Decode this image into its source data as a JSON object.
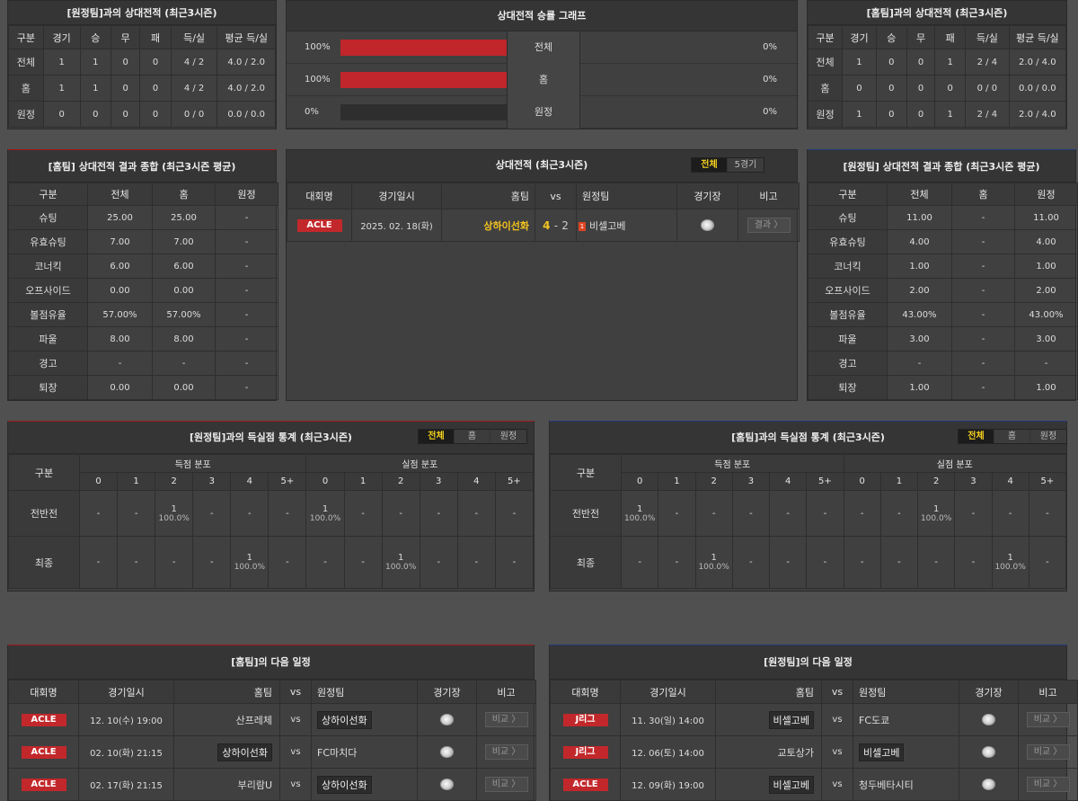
{
  "h2h_away": {
    "title": "[원정팀]과의 상대전적 (최근3시즌)",
    "headers": [
      "구분",
      "경기",
      "승",
      "무",
      "패",
      "득/실",
      "평균 득/실"
    ],
    "rows": [
      [
        "전체",
        "1",
        "1",
        "0",
        "0",
        "4 / 2",
        "4.0 / 2.0"
      ],
      [
        "홈",
        "1",
        "1",
        "0",
        "0",
        "4 / 2",
        "4.0 / 2.0"
      ],
      [
        "원정",
        "0",
        "0",
        "0",
        "0",
        "0 / 0",
        "0.0 / 0.0"
      ]
    ]
  },
  "graph": {
    "title": "상대전적 승률 그래프",
    "rows": [
      {
        "label": "전체",
        "left": "100%",
        "right": "0%",
        "left_frac": 1.0
      },
      {
        "label": "홈",
        "left": "100%",
        "right": "0%",
        "left_frac": 1.0
      },
      {
        "label": "원정",
        "left": "0%",
        "right": "0%",
        "left_frac": 0.0
      }
    ]
  },
  "h2h_home": {
    "title": "[홈팀]과의 상대전적 (최근3시즌)",
    "headers": [
      "구분",
      "경기",
      "승",
      "무",
      "패",
      "득/실",
      "평균 득/실"
    ],
    "rows": [
      [
        "전체",
        "1",
        "0",
        "0",
        "1",
        "2 / 4",
        "2.0 / 4.0"
      ],
      [
        "홈",
        "0",
        "0",
        "0",
        "0",
        "0 / 0",
        "0.0 / 0.0"
      ],
      [
        "원정",
        "1",
        "0",
        "0",
        "1",
        "2 / 4",
        "2.0 / 4.0"
      ]
    ]
  },
  "home_summary": {
    "title": "[홈팀] 상대전적 결과 종합 (최근3시즌 평균)",
    "headers": [
      "구분",
      "전체",
      "홈",
      "원정"
    ],
    "rows": [
      [
        "슈팅",
        "25.00",
        "25.00",
        "-"
      ],
      [
        "유효슈팅",
        "7.00",
        "7.00",
        "-"
      ],
      [
        "코너킥",
        "6.00",
        "6.00",
        "-"
      ],
      [
        "오프사이드",
        "0.00",
        "0.00",
        "-"
      ],
      [
        "볼점유율",
        "57.00%",
        "57.00%",
        "-"
      ],
      [
        "파울",
        "8.00",
        "8.00",
        "-"
      ],
      [
        "경고",
        "-",
        "-",
        "-"
      ],
      [
        "퇴장",
        "0.00",
        "0.00",
        "-"
      ]
    ]
  },
  "h2h_list": {
    "title": "상대전적 (최근3시즌)",
    "tabs": [
      "전체",
      "5경기"
    ],
    "headers": {
      "league": "대회명",
      "date": "경기일시",
      "home": "홈팀",
      "vs": "vs",
      "away": "원정팀",
      "venue": "경기장",
      "note": "비고"
    },
    "matches": [
      {
        "league": "ACLE",
        "date": "2025. 02. 18(화)",
        "home": "상하이선화",
        "score_home": "4",
        "dash": "-",
        "score_away": "2",
        "card": "1",
        "away": "비셀고베",
        "button": "결과 〉"
      }
    ]
  },
  "away_summary": {
    "title": "[원정팀] 상대전적 결과 종합 (최근3시즌 평균)",
    "headers": [
      "구분",
      "전체",
      "홈",
      "원정"
    ],
    "rows": [
      [
        "슈팅",
        "11.00",
        "-",
        "11.00"
      ],
      [
        "유효슈팅",
        "4.00",
        "-",
        "4.00"
      ],
      [
        "코너킥",
        "1.00",
        "-",
        "1.00"
      ],
      [
        "오프사이드",
        "2.00",
        "-",
        "2.00"
      ],
      [
        "볼점유율",
        "43.00%",
        "-",
        "43.00%"
      ],
      [
        "파울",
        "3.00",
        "-",
        "3.00"
      ],
      [
        "경고",
        "-",
        "-",
        "-"
      ],
      [
        "퇴장",
        "1.00",
        "-",
        "1.00"
      ]
    ]
  },
  "goals_left": {
    "title": "[원정팀]과의 득실점 통계 (최근3시즌)",
    "tabs": [
      "전체",
      "홈",
      "원정"
    ],
    "group_header": "구분",
    "scored_label": "득점 분포",
    "conceded_label": "실점 분포",
    "cols": [
      "0",
      "1",
      "2",
      "3",
      "4",
      "5+"
    ],
    "rows": [
      {
        "label": "전반전",
        "scored": [
          "-",
          "-",
          "1|100.0%",
          "-",
          "-",
          "-"
        ],
        "conceded": [
          "1|100.0%",
          "-",
          "-",
          "-",
          "-",
          "-"
        ]
      },
      {
        "label": "최종",
        "scored": [
          "-",
          "-",
          "-",
          "-",
          "1|100.0%",
          "-"
        ],
        "conceded": [
          "-",
          "-",
          "1|100.0%",
          "-",
          "-",
          "-"
        ]
      }
    ]
  },
  "goals_right": {
    "title": "[홈팀]과의 득실점 통계 (최근3시즌)",
    "tabs": [
      "전체",
      "홈",
      "원정"
    ],
    "group_header": "구분",
    "scored_label": "득점 분포",
    "conceded_label": "실점 분포",
    "cols": [
      "0",
      "1",
      "2",
      "3",
      "4",
      "5+"
    ],
    "rows": [
      {
        "label": "전반전",
        "scored": [
          "1|100.0%",
          "-",
          "-",
          "-",
          "-",
          "-"
        ],
        "conceded": [
          "-",
          "-",
          "1|100.0%",
          "-",
          "-",
          "-"
        ]
      },
      {
        "label": "최종",
        "scored": [
          "-",
          "-",
          "1|100.0%",
          "-",
          "-",
          "-"
        ],
        "conceded": [
          "-",
          "-",
          "-",
          "-",
          "1|100.0%",
          "-"
        ]
      }
    ]
  },
  "next_home": {
    "title": "[홈팀]의 다음 일정",
    "headers": {
      "league": "대회명",
      "date": "경기일시",
      "home": "홈팀",
      "vs": "vs",
      "away": "원정팀",
      "venue": "경기장",
      "note": "비고"
    },
    "matches": [
      {
        "league": "ACLE",
        "date": "12. 10(수) 19:00",
        "home": "산프레체",
        "away": "상하이선화",
        "hl": "away",
        "button": "비교 〉"
      },
      {
        "league": "ACLE",
        "date": "02. 10(화) 21:15",
        "home": "상하이선화",
        "away": "FC마치다",
        "hl": "home",
        "button": "비교 〉"
      },
      {
        "league": "ACLE",
        "date": "02. 17(화) 21:15",
        "home": "부리람U",
        "away": "상하이선화",
        "hl": "away",
        "button": "비교 〉"
      }
    ]
  },
  "next_away": {
    "title": "[원정팀]의 다음 일정",
    "headers": {
      "league": "대회명",
      "date": "경기일시",
      "home": "홈팀",
      "vs": "vs",
      "away": "원정팀",
      "venue": "경기장",
      "note": "비고"
    },
    "matches": [
      {
        "league": "J리그",
        "date": "11. 30(일) 14:00",
        "home": "비셀고베",
        "away": "FC도쿄",
        "hl": "home",
        "button": "비교 〉"
      },
      {
        "league": "J리그",
        "date": "12. 06(토) 14:00",
        "home": "교토상가",
        "away": "비셀고베",
        "hl": "away",
        "button": "비교 〉"
      },
      {
        "league": "ACLE",
        "date": "12. 09(화) 19:00",
        "home": "비셀고베",
        "away": "청두베타시티",
        "hl": "home",
        "button": "비교 〉"
      }
    ]
  }
}
